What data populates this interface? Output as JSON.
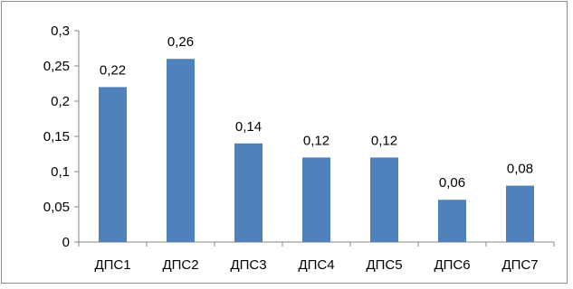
{
  "chart_data": {
    "type": "bar",
    "categories": [
      "ДПС1",
      "ДПС2",
      "ДПС3",
      "ДПС4",
      "ДПС5",
      "ДПС6",
      "ДПС7"
    ],
    "values": [
      0.22,
      0.26,
      0.14,
      0.12,
      0.12,
      0.06,
      0.08
    ],
    "data_labels": [
      "0,22",
      "0,26",
      "0,14",
      "0,12",
      "0,12",
      "0,06",
      "0,08"
    ],
    "y_ticks": [
      0,
      0.05,
      0.1,
      0.15,
      0.2,
      0.25,
      0.3
    ],
    "y_tick_labels": [
      "0",
      "0,05",
      "0,1",
      "0,15",
      "0,2",
      "0,25",
      "0,3"
    ],
    "ylim": [
      0,
      0.3
    ],
    "bar_color": "#4f81bd",
    "grid": false,
    "legend": false
  }
}
